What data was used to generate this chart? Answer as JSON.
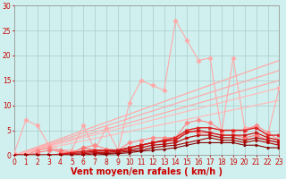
{
  "background_color": "#cff0ee",
  "grid_color": "#aacccc",
  "xlabel": "Vent moyen/en rafales ( km/h )",
  "ylabel_ticks": [
    0,
    5,
    10,
    15,
    20,
    25,
    30
  ],
  "x_ticks": [
    0,
    1,
    2,
    3,
    4,
    5,
    6,
    7,
    8,
    9,
    10,
    11,
    12,
    13,
    14,
    15,
    16,
    17,
    18,
    19,
    20,
    21,
    22,
    23
  ],
  "xlim": [
    0,
    23
  ],
  "ylim": [
    0,
    30
  ],
  "lines": [
    {
      "x": [
        0,
        1,
        2,
        3,
        4,
        5,
        6,
        7,
        8,
        9,
        10,
        11,
        12,
        13,
        14,
        15,
        16,
        17,
        18,
        19,
        20,
        21,
        22,
        23
      ],
      "y": [
        0.5,
        7,
        6,
        2,
        1,
        1,
        6,
        1,
        5.5,
        1,
        10.5,
        15,
        14,
        13,
        27,
        23,
        19,
        19.5,
        4.5,
        19.5,
        5.5,
        5.5,
        4,
        13.5
      ],
      "color": "#ffaaaa",
      "lw": 0.8,
      "marker": "D",
      "ms": 2.5,
      "zorder": 3
    },
    {
      "x": [
        0,
        1,
        2,
        3,
        4,
        5,
        6,
        7,
        8,
        9,
        10,
        11,
        12,
        13,
        14,
        15,
        16,
        17,
        18,
        19,
        20,
        21,
        22,
        23
      ],
      "y": [
        0,
        0,
        1,
        1.5,
        0.5,
        0.5,
        1.5,
        2,
        1.2,
        1,
        2.5,
        3,
        3.5,
        3.5,
        3.5,
        6.5,
        7,
        6.5,
        5,
        5,
        5,
        6,
        4.5,
        3
      ],
      "color": "#ff8888",
      "lw": 0.8,
      "marker": "D",
      "ms": 2.5,
      "zorder": 3
    },
    {
      "x": [
        0,
        1,
        2,
        3,
        4,
        5,
        6,
        7,
        8,
        9,
        10,
        11,
        12,
        13,
        14,
        15,
        16,
        17,
        18,
        19,
        20,
        21,
        22,
        23
      ],
      "y": [
        0,
        0,
        0.5,
        1,
        1,
        0.5,
        1.5,
        1,
        1,
        0.5,
        1.5,
        2,
        2.5,
        3,
        3,
        5,
        4.5,
        4.5,
        4,
        4,
        3.5,
        4,
        3,
        2.5
      ],
      "color": "#ff7777",
      "lw": 0.8,
      "marker": "D",
      "ms": 2.5,
      "zorder": 3
    },
    {
      "x": [
        0,
        23
      ],
      "y": [
        0,
        19
      ],
      "color": "#ffaaaa",
      "lw": 0.9,
      "marker": null,
      "ms": 0,
      "zorder": 2
    },
    {
      "x": [
        0,
        23
      ],
      "y": [
        0,
        17
      ],
      "color": "#ffaaaa",
      "lw": 0.9,
      "marker": null,
      "ms": 0,
      "zorder": 2
    },
    {
      "x": [
        0,
        23
      ],
      "y": [
        0,
        15
      ],
      "color": "#ffaaaa",
      "lw": 0.9,
      "marker": null,
      "ms": 0,
      "zorder": 2
    },
    {
      "x": [
        0,
        23
      ],
      "y": [
        0,
        13.5
      ],
      "color": "#ffbbbb",
      "lw": 0.9,
      "marker": null,
      "ms": 0,
      "zorder": 2
    },
    {
      "x": [
        0,
        23
      ],
      "y": [
        0,
        11
      ],
      "color": "#ffbbbb",
      "lw": 0.9,
      "marker": null,
      "ms": 0,
      "zorder": 2
    },
    {
      "x": [
        0,
        1,
        2,
        3,
        4,
        5,
        6,
        7,
        8,
        9,
        10,
        11,
        12,
        13,
        14,
        15,
        16,
        17,
        18,
        19,
        20,
        21,
        22,
        23
      ],
      "y": [
        0,
        0,
        0,
        0,
        0.2,
        0.5,
        0.8,
        1,
        1,
        1,
        1.5,
        2,
        2.5,
        3,
        3.5,
        5,
        5.5,
        5.5,
        5,
        5,
        5,
        5.5,
        4,
        4
      ],
      "color": "#dd2222",
      "lw": 1.0,
      "marker": ">",
      "ms": 2.5,
      "zorder": 4
    },
    {
      "x": [
        0,
        1,
        2,
        3,
        4,
        5,
        6,
        7,
        8,
        9,
        10,
        11,
        12,
        13,
        14,
        15,
        16,
        17,
        18,
        19,
        20,
        21,
        22,
        23
      ],
      "y": [
        0,
        0,
        0,
        0,
        0,
        0.3,
        0.5,
        0.8,
        0.8,
        1,
        1.5,
        2,
        2.5,
        2.8,
        3,
        4.5,
        5,
        4.5,
        4,
        4,
        4,
        4.5,
        3.5,
        3
      ],
      "color": "#cc1111",
      "lw": 0.9,
      "marker": ">",
      "ms": 2.5,
      "zorder": 4
    },
    {
      "x": [
        0,
        1,
        2,
        3,
        4,
        5,
        6,
        7,
        8,
        9,
        10,
        11,
        12,
        13,
        14,
        15,
        16,
        17,
        18,
        19,
        20,
        21,
        22,
        23
      ],
      "y": [
        0,
        0,
        0,
        0,
        0,
        0,
        0.3,
        0.5,
        0.5,
        0.8,
        1,
        1.5,
        2,
        2.2,
        2.5,
        3.5,
        4,
        4,
        3.5,
        3.5,
        3,
        3.5,
        3,
        2.5
      ],
      "color": "#bb1111",
      "lw": 0.9,
      "marker": ">",
      "ms": 2.5,
      "zorder": 4
    },
    {
      "x": [
        0,
        1,
        2,
        3,
        4,
        5,
        6,
        7,
        8,
        9,
        10,
        11,
        12,
        13,
        14,
        15,
        16,
        17,
        18,
        19,
        20,
        21,
        22,
        23
      ],
      "y": [
        0,
        0,
        0,
        0,
        0,
        0,
        0,
        0.3,
        0.3,
        0.5,
        0.8,
        1,
        1.5,
        1.8,
        2,
        2.5,
        3,
        3.5,
        3,
        3,
        2.5,
        3,
        2.5,
        2
      ],
      "color": "#aa0000",
      "lw": 0.8,
      "marker": ">",
      "ms": 2.0,
      "zorder": 4
    },
    {
      "x": [
        0,
        1,
        2,
        3,
        4,
        5,
        6,
        7,
        8,
        9,
        10,
        11,
        12,
        13,
        14,
        15,
        16,
        17,
        18,
        19,
        20,
        21,
        22,
        23
      ],
      "y": [
        0,
        0,
        0,
        0,
        0,
        0,
        0,
        0,
        0.2,
        0.3,
        0.5,
        0.8,
        1,
        1.2,
        1.5,
        2,
        2.5,
        2.5,
        2.5,
        2.5,
        2,
        2,
        1.5,
        1.5
      ],
      "color": "#880000",
      "lw": 0.8,
      "marker": ">",
      "ms": 2.0,
      "zorder": 4
    }
  ],
  "tick_label_fontsize": 5.5,
  "xlabel_fontsize": 7,
  "tick_color": "#cc0000",
  "label_color": "#cc0000",
  "spine_color": "#999999"
}
